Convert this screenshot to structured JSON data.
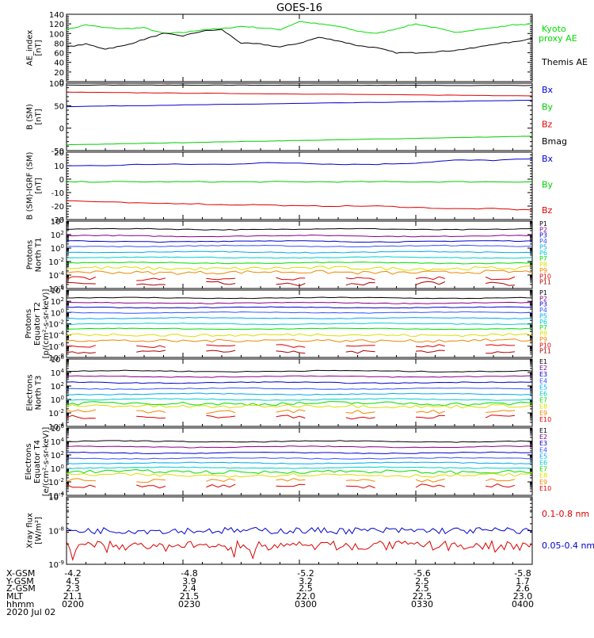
{
  "title": "GOES-16",
  "date": "2020 Jul 02",
  "colors": {
    "black": "#000000",
    "blue": "#0000cc",
    "green": "#00cc00",
    "red": "#dd0000",
    "bright_green": "#00dd00",
    "cyan": "#00cccc",
    "teal": "#00aa88",
    "yellow": "#dddd00",
    "orange": "#ee8800",
    "dark_red": "#aa0000"
  },
  "footer": {
    "row_labels": [
      "X-GSM",
      "Y-GSM",
      "Z-GSM",
      "MLT",
      "hhmm"
    ],
    "columns": [
      {
        "values": [
          "-4.2",
          "4.5",
          "2.3",
          "21.1",
          "0200"
        ]
      },
      {
        "values": [
          "-4.8",
          "3.9",
          "2.4",
          "21.5",
          "0230"
        ]
      },
      {
        "values": [
          "-5.2",
          "3.2",
          "2.5",
          "22.0",
          "0300"
        ]
      },
      {
        "values": [
          "-5.6",
          "2.5",
          "2.5",
          "22.5",
          "0330"
        ]
      },
      {
        "values": [
          "-5.8",
          "1.7",
          "2.6",
          "23.0",
          "0400"
        ]
      }
    ]
  },
  "chart_data": [
    {
      "type": "line",
      "ylabel": "AE_index\n[nT]",
      "ylim": [
        0,
        140
      ],
      "yscale": "linear",
      "yticks": [
        "0",
        "20",
        "40",
        "60",
        "80",
        "100",
        "120",
        "140"
      ],
      "x": [
        0,
        5,
        10,
        15,
        20,
        25,
        30,
        35,
        40,
        45,
        50,
        55,
        60,
        65,
        70,
        75,
        80,
        85,
        90,
        95,
        100,
        105,
        110,
        115,
        120
      ],
      "series": [
        {
          "name": "Kyoto proxy AE",
          "color": "#00dd00",
          "values": [
            108,
            118,
            112,
            110,
            112,
            100,
            102,
            108,
            110,
            115,
            112,
            108,
            125,
            120,
            115,
            105,
            100,
            110,
            120,
            112,
            102,
            108,
            112,
            118,
            120
          ]
        },
        {
          "name": "Themis AE",
          "color": "#000000",
          "values": [
            72,
            78,
            68,
            75,
            88,
            100,
            95,
            105,
            108,
            80,
            78,
            72,
            80,
            92,
            85,
            75,
            70,
            60,
            60,
            62,
            65,
            70,
            78,
            82,
            90
          ]
        }
      ],
      "legend": [
        "Kyoto\nproxy AE",
        "Themis AE"
      ]
    },
    {
      "type": "line",
      "ylabel": "B (SM)\n[nT]",
      "ylim": [
        -50,
        100
      ],
      "yscale": "linear",
      "yticks": [
        "-50",
        "0",
        "50",
        "100"
      ],
      "x": [
        0,
        120
      ],
      "series": [
        {
          "name": "Bx",
          "color": "#0000cc",
          "values": [
            48,
            62
          ]
        },
        {
          "name": "By",
          "color": "#00cc00",
          "values": [
            -37,
            -18
          ]
        },
        {
          "name": "Bz",
          "color": "#dd0000",
          "values": [
            80,
            72
          ]
        },
        {
          "name": "Bmag",
          "color": "#000000",
          "values": [
            96,
            95
          ]
        }
      ],
      "legend": [
        "Bx",
        "By",
        "Bz",
        "Bmag"
      ]
    },
    {
      "type": "line",
      "ylabel": "B (SM)-IGRF (SM)\n[nT]",
      "ylim": [
        -30,
        20
      ],
      "yscale": "linear",
      "yticks": [
        "-30",
        "-20",
        "-10",
        "0",
        "10",
        "20"
      ],
      "x": [
        0,
        10,
        20,
        30,
        40,
        50,
        60,
        70,
        80,
        90,
        100,
        110,
        120
      ],
      "series": [
        {
          "name": "Bx",
          "color": "#0000cc",
          "values": [
            10,
            10,
            11,
            11,
            11,
            12,
            12,
            11,
            11,
            12,
            14,
            14,
            15
          ]
        },
        {
          "name": "By",
          "color": "#00cc00",
          "values": [
            -2,
            -2,
            -2,
            -2,
            -2,
            -2,
            -2,
            -2,
            -2,
            -2,
            -2,
            -2,
            -2
          ]
        },
        {
          "name": "Bz",
          "color": "#dd0000",
          "values": [
            -16,
            -17,
            -18,
            -18,
            -19,
            -19,
            -20,
            -20,
            -20,
            -21,
            -22,
            -22,
            -23
          ]
        }
      ],
      "legend": [
        "Bx",
        "By",
        "Bz"
      ]
    },
    {
      "type": "line",
      "ylabel": "Protons\nNorth T1",
      "ylim": [
        -6,
        4
      ],
      "yscale": "log",
      "yticks": [
        "10^-6",
        "10^-4",
        "10^-2",
        "10^0",
        "10^2",
        "10^4"
      ],
      "legend": [
        "P1",
        "P2",
        "P3",
        "P4",
        "P5",
        "P6",
        "P7",
        "P8",
        "P9",
        "P10",
        "P11"
      ],
      "levels": [
        2.8,
        1.8,
        1.0,
        0.3,
        -0.6,
        -1.4,
        -2.2,
        -3.0,
        -3.6,
        -4.5,
        -5.3
      ]
    },
    {
      "type": "line",
      "ylabel": "Protons\nEquator T2\n[p/(cm²-s-sr-keV)]",
      "ylim": [
        -8,
        4
      ],
      "yscale": "log",
      "yticks": [
        "10^-8",
        "10^-6",
        "10^-4",
        "10^-2",
        "10^0",
        "10^2",
        "10^4"
      ],
      "legend": [
        "P1",
        "P2",
        "P3",
        "P4",
        "P5",
        "P6",
        "P7",
        "P8",
        "P9",
        "P10",
        "P11"
      ],
      "levels": [
        2.6,
        1.7,
        0.9,
        0.0,
        -1.0,
        -2.0,
        -2.9,
        -4.0,
        -5.0,
        -6.0,
        -7.0
      ]
    },
    {
      "type": "line",
      "ylabel": "Electrons\nNorth T3",
      "ylim": [
        -4,
        6
      ],
      "yscale": "log",
      "yticks": [
        "10^-4",
        "10^-2",
        "10^0",
        "10^2",
        "10^4",
        "10^6"
      ],
      "legend": [
        "E1",
        "E2",
        "E3",
        "E4",
        "E5",
        "E6",
        "E7",
        "E8",
        "E9",
        "E10"
      ],
      "levels": [
        4.2,
        3.4,
        2.5,
        1.6,
        0.8,
        0.0,
        -0.6,
        -1.0,
        -1.8,
        -2.6
      ]
    },
    {
      "type": "line",
      "ylabel": "Electrons\nEquator T4\n[e/(cm²-s-sr-keV)]",
      "ylim": [
        -4,
        6
      ],
      "yscale": "log",
      "yticks": [
        "10^-4",
        "10^-2",
        "10^0",
        "10^2",
        "10^4",
        "10^6"
      ],
      "legend": [
        "E1",
        "E2",
        "E3",
        "E4",
        "E5",
        "E6",
        "E7",
        "E8",
        "E9",
        "E10"
      ],
      "levels": [
        4.0,
        3.2,
        2.3,
        1.5,
        0.8,
        0.1,
        -0.5,
        -1.0,
        -1.8,
        -2.6
      ]
    },
    {
      "type": "line",
      "ylabel": "Xray flux\n[W/m²]",
      "ylim": [
        -9,
        -7
      ],
      "yscale": "log",
      "yticks": [
        "10^-9",
        "10^-8",
        "10^-7"
      ],
      "series": [
        {
          "name": "0.1-0.8 nm",
          "color": "#dd0000"
        },
        {
          "name": "0.05-0.4 nm",
          "color": "#0000cc"
        }
      ],
      "legend": [
        "0.1-0.8 nm",
        "0.05-0.4 nm"
      ]
    }
  ]
}
